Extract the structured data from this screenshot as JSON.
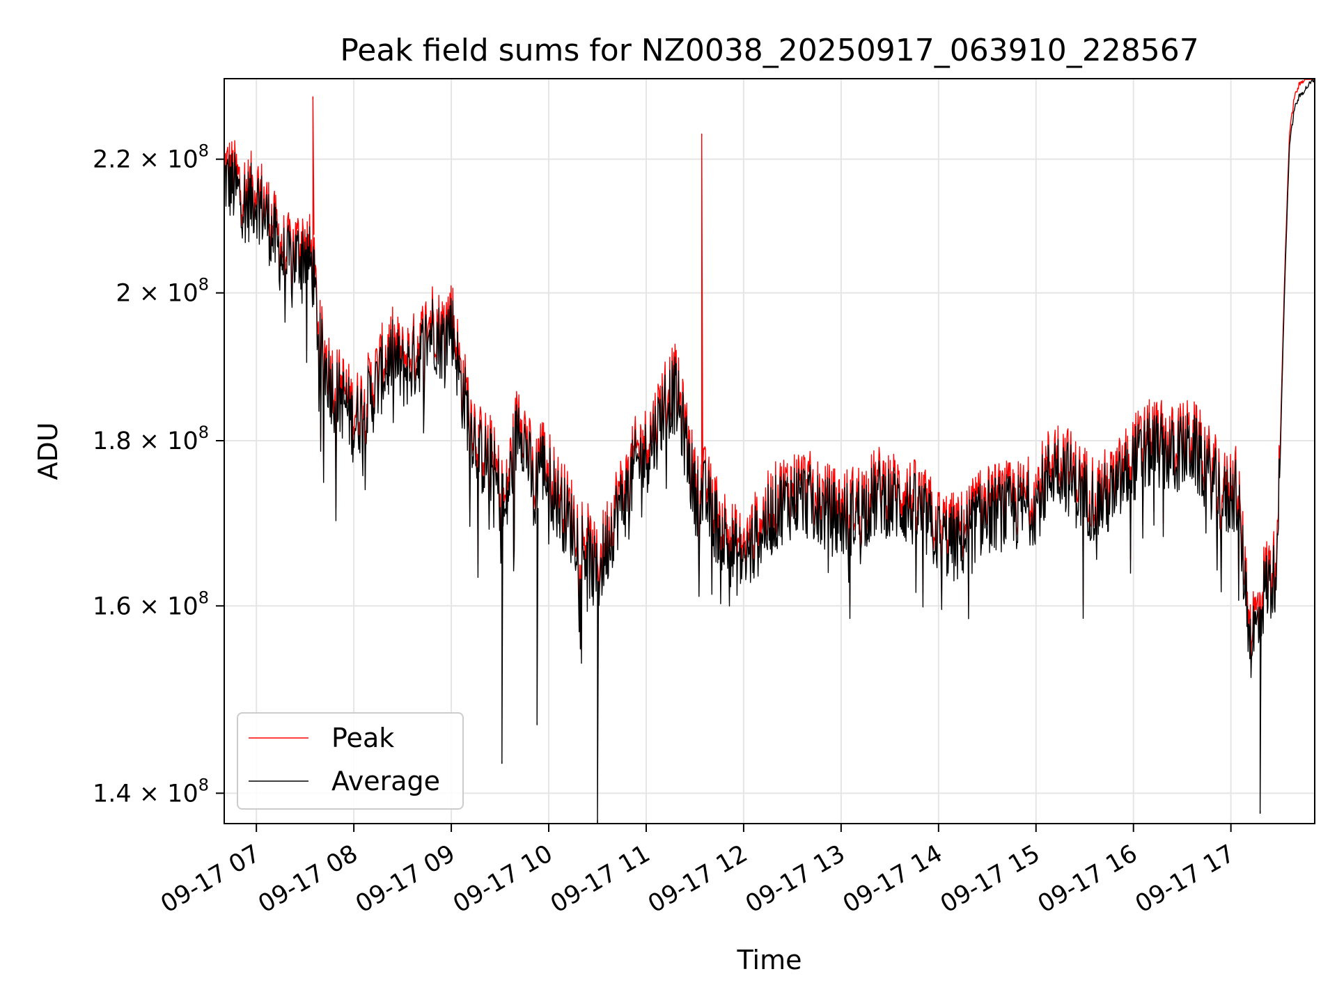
{
  "chart_data": {
    "type": "line",
    "title": "Peak field sums for NZ0038_20250917_063910_228567",
    "xlabel": "Time",
    "ylabel": "ADU",
    "y_scale": "log",
    "xlim": [
      6.67,
      17.86
    ],
    "ylim": [
      137000000,
      233000000
    ],
    "grid": true,
    "legend_position": "lower-left",
    "x_ticks": [
      {
        "value": 7,
        "label": "09-17 07"
      },
      {
        "value": 8,
        "label": "09-17 08"
      },
      {
        "value": 9,
        "label": "09-17 09"
      },
      {
        "value": 10,
        "label": "09-17 10"
      },
      {
        "value": 11,
        "label": "09-17 11"
      },
      {
        "value": 12,
        "label": "09-17 12"
      },
      {
        "value": 13,
        "label": "09-17 13"
      },
      {
        "value": 14,
        "label": "09-17 14"
      },
      {
        "value": 15,
        "label": "09-17 15"
      },
      {
        "value": 16,
        "label": "09-17 16"
      },
      {
        "value": 17,
        "label": "09-17 17"
      }
    ],
    "y_ticks": [
      {
        "value": 140000000,
        "mantissa": "1.4",
        "exponent": "8"
      },
      {
        "value": 160000000,
        "mantissa": "1.6",
        "exponent": "8"
      },
      {
        "value": 180000000,
        "mantissa": "1.8",
        "exponent": "8"
      },
      {
        "value": 200000000,
        "mantissa": "2",
        "exponent": "8"
      },
      {
        "value": 220000000,
        "mantissa": "2.2",
        "exponent": "8"
      }
    ],
    "times_label_suffix": "× 10",
    "series": [
      {
        "name": "Average",
        "color": "#000000",
        "x": [
          6.67,
          6.8,
          6.9,
          7.0,
          7.1,
          7.2,
          7.3,
          7.4,
          7.5,
          7.58,
          7.65,
          7.7,
          7.8,
          7.9,
          8.0,
          8.1,
          8.2,
          8.3,
          8.4,
          8.5,
          8.6,
          8.7,
          8.8,
          8.9,
          9.0,
          9.1,
          9.2,
          9.3,
          9.4,
          9.5,
          9.55,
          9.6,
          9.7,
          9.8,
          9.85,
          9.9,
          10.0,
          10.1,
          10.2,
          10.3,
          10.4,
          10.45,
          10.5,
          10.6,
          10.7,
          10.8,
          10.9,
          11.0,
          11.1,
          11.2,
          11.3,
          11.4,
          11.5,
          11.6,
          11.7,
          11.8,
          11.9,
          12.0,
          12.1,
          12.2,
          12.4,
          12.6,
          12.8,
          13.0,
          13.2,
          13.4,
          13.6,
          13.8,
          14.0,
          14.2,
          14.4,
          14.6,
          14.8,
          15.0,
          15.2,
          15.3,
          15.4,
          15.6,
          15.8,
          16.0,
          16.2,
          16.4,
          16.6,
          16.8,
          16.95,
          17.05,
          17.15,
          17.2,
          17.28,
          17.35,
          17.45,
          17.5,
          17.55,
          17.6,
          17.65,
          17.7,
          17.8,
          17.86
        ],
        "values": [
          217000000,
          215000000,
          213000000,
          214000000,
          211000000,
          207000000,
          204000000,
          205000000,
          206000000,
          203000000,
          192000000,
          190000000,
          186000000,
          185000000,
          182000000,
          184000000,
          186000000,
          189000000,
          191000000,
          189000000,
          190000000,
          192000000,
          195000000,
          193000000,
          196000000,
          187000000,
          182000000,
          178000000,
          177000000,
          173000000,
          170000000,
          175000000,
          183000000,
          177000000,
          172000000,
          178000000,
          175000000,
          172000000,
          170000000,
          168000000,
          166000000,
          164000000,
          163000000,
          167000000,
          171000000,
          173000000,
          177000000,
          178000000,
          181000000,
          185000000,
          186000000,
          180000000,
          173000000,
          173000000,
          170000000,
          168000000,
          166000000,
          165000000,
          167000000,
          169000000,
          172000000,
          173000000,
          171000000,
          170000000,
          171000000,
          173000000,
          172000000,
          171000000,
          168000000,
          167000000,
          170000000,
          171000000,
          171000000,
          172000000,
          177000000,
          176000000,
          174000000,
          172000000,
          173000000,
          177000000,
          179000000,
          178000000,
          179000000,
          175000000,
          172000000,
          174000000,
          162000000,
          156000000,
          158000000,
          162000000,
          163000000,
          175000000,
          200000000,
          222000000,
          228000000,
          230000000,
          232000000,
          233000000
        ]
      },
      {
        "name": "Peak",
        "color": "#ff0000",
        "x": [
          6.67,
          6.8,
          6.9,
          7.0,
          7.1,
          7.2,
          7.3,
          7.4,
          7.5,
          7.58,
          7.65,
          7.7,
          7.8,
          7.9,
          8.0,
          8.1,
          8.2,
          8.3,
          8.4,
          8.5,
          8.6,
          8.7,
          8.8,
          8.9,
          9.0,
          9.1,
          9.2,
          9.3,
          9.4,
          9.5,
          9.55,
          9.6,
          9.7,
          9.8,
          9.85,
          9.9,
          10.0,
          10.1,
          10.2,
          10.3,
          10.4,
          10.45,
          10.5,
          10.6,
          10.7,
          10.8,
          10.9,
          11.0,
          11.1,
          11.2,
          11.3,
          11.4,
          11.5,
          11.6,
          11.7,
          11.8,
          11.9,
          12.0,
          12.1,
          12.2,
          12.4,
          12.6,
          12.8,
          13.0,
          13.2,
          13.4,
          13.6,
          13.8,
          14.0,
          14.2,
          14.4,
          14.6,
          14.8,
          15.0,
          15.2,
          15.3,
          15.4,
          15.6,
          15.8,
          16.0,
          16.2,
          16.4,
          16.6,
          16.8,
          16.95,
          17.05,
          17.15,
          17.2,
          17.28,
          17.35,
          17.45,
          17.5,
          17.55,
          17.6,
          17.65,
          17.7,
          17.8,
          17.86
        ],
        "values": [
          218000000,
          216000000,
          214000000,
          215000000,
          212000000,
          208000000,
          205000000,
          206000000,
          207000000,
          204000000,
          193000000,
          191000000,
          187000000,
          186000000,
          183000000,
          185000000,
          187000000,
          190000000,
          192000000,
          190000000,
          191000000,
          193000000,
          196000000,
          194000000,
          197000000,
          188000000,
          183000000,
          179000000,
          178000000,
          174000000,
          171000000,
          176000000,
          184000000,
          178000000,
          173000000,
          179000000,
          176000000,
          173000000,
          171000000,
          169000000,
          167000000,
          165000000,
          164000000,
          168000000,
          172000000,
          174000000,
          178000000,
          179000000,
          182000000,
          186000000,
          187000000,
          181000000,
          174000000,
          174000000,
          171000000,
          169000000,
          167000000,
          166000000,
          168000000,
          170000000,
          173000000,
          174000000,
          172000000,
          171000000,
          172000000,
          174000000,
          173000000,
          172000000,
          169000000,
          168000000,
          171000000,
          172000000,
          172000000,
          173000000,
          178000000,
          177000000,
          175000000,
          173000000,
          174000000,
          178000000,
          180000000,
          179000000,
          180000000,
          176000000,
          173000000,
          175000000,
          163000000,
          157000000,
          159000000,
          163000000,
          164000000,
          176000000,
          201000000,
          223000000,
          229000000,
          231000000,
          233000000,
          233000000
        ]
      }
    ],
    "peak_spikes": [
      {
        "x": 7.58,
        "value": 230000000
      },
      {
        "x": 11.57,
        "value": 224000000
      }
    ],
    "average_dips": [
      {
        "x": 9.52,
        "value": 143000000
      },
      {
        "x": 9.88,
        "value": 147000000
      },
      {
        "x": 10.5,
        "value": 137000000
      },
      {
        "x": 17.3,
        "value": 138000000
      }
    ]
  }
}
